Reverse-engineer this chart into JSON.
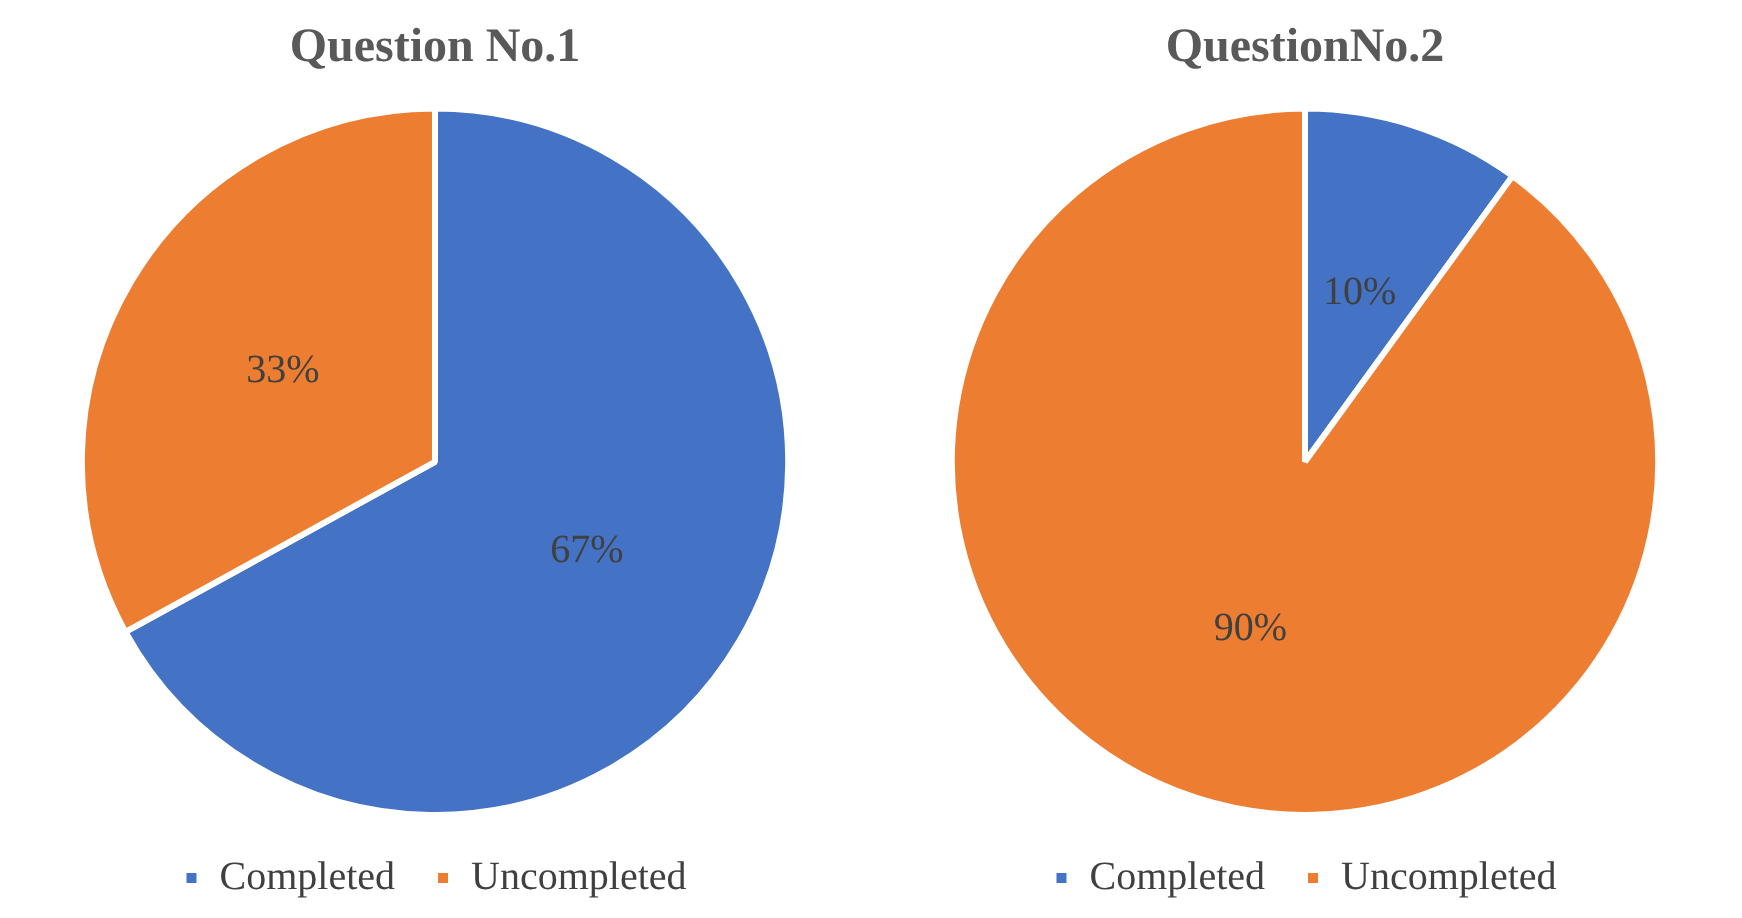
{
  "chart_data": [
    {
      "type": "pie",
      "title": "Question No.1",
      "categories": [
        "Completed",
        "Uncompleted"
      ],
      "values": [
        67,
        33
      ],
      "colors": [
        "#4472c4",
        "#ed7d31"
      ],
      "value_labels": [
        "67%",
        "33%"
      ],
      "legend": "bottom"
    },
    {
      "type": "pie",
      "title": "QuestionNo.2",
      "categories": [
        "Completed",
        "Uncompleted"
      ],
      "values": [
        10,
        90
      ],
      "colors": [
        "#4472c4",
        "#ed7d31"
      ],
      "value_labels": [
        "10%",
        "90%"
      ],
      "legend": "bottom"
    }
  ]
}
